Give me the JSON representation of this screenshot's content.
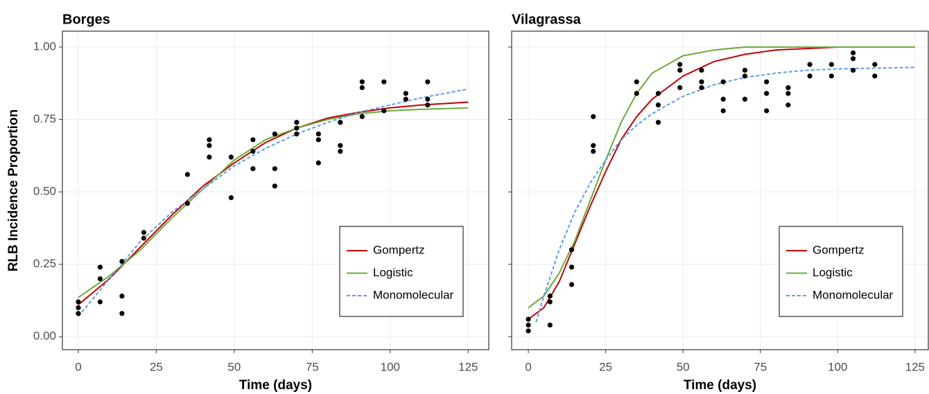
{
  "chart_data": [
    {
      "type": "line",
      "title": "Borges",
      "x_label": "Time (days)",
      "y_label": "RLB Incidence Proportion",
      "xlim": [
        -5.1,
        131.6
      ],
      "ylim": [
        -0.045,
        1.055
      ],
      "xticks": [
        0,
        25,
        50,
        75,
        100,
        125
      ],
      "yticks": [
        {
          "value": 0,
          "label": "0.00"
        },
        {
          "value": 0.25,
          "label": "0.25"
        },
        {
          "value": 0.5,
          "label": "0.50"
        },
        {
          "value": 0.75,
          "label": "0.75"
        },
        {
          "value": 1,
          "label": "1.00"
        }
      ],
      "grid": true,
      "legend": "bottom-right",
      "points": {
        "color": "#000000",
        "x": [
          0,
          0,
          0,
          7,
          7,
          7,
          14,
          14,
          14,
          21,
          21,
          35,
          35,
          42,
          42,
          42,
          49,
          49,
          56,
          56,
          56,
          63,
          63,
          63,
          70,
          70,
          70,
          77,
          77,
          77,
          84,
          84,
          84,
          91,
          91,
          91,
          98,
          98,
          105,
          105,
          112,
          112,
          112
        ],
        "values": [
          0.12,
          0.1,
          0.08,
          0.24,
          0.2,
          0.12,
          0.26,
          0.14,
          0.08,
          0.36,
          0.34,
          0.56,
          0.46,
          0.68,
          0.66,
          0.62,
          0.62,
          0.48,
          0.68,
          0.64,
          0.58,
          0.7,
          0.58,
          0.52,
          0.74,
          0.72,
          0.7,
          0.7,
          0.68,
          0.6,
          0.74,
          0.66,
          0.64,
          0.88,
          0.86,
          0.76,
          0.88,
          0.78,
          0.84,
          0.82,
          0.88,
          0.82,
          0.8
        ]
      },
      "series": [
        {
          "name": "Gompertz",
          "color": "#c00000",
          "dashed": false,
          "x": [
            0,
            10,
            20,
            30,
            40,
            50,
            60,
            70,
            80,
            90,
            100,
            110,
            125
          ],
          "values": [
            0.11,
            0.2,
            0.31,
            0.42,
            0.52,
            0.6,
            0.67,
            0.72,
            0.755,
            0.775,
            0.79,
            0.8,
            0.81
          ]
        },
        {
          "name": "Logistic",
          "color": "#6aaa3a",
          "dashed": false,
          "x": [
            0,
            10,
            20,
            30,
            40,
            50,
            60,
            70,
            80,
            90,
            100,
            110,
            125
          ],
          "values": [
            0.135,
            0.21,
            0.3,
            0.41,
            0.51,
            0.61,
            0.68,
            0.72,
            0.75,
            0.77,
            0.78,
            0.785,
            0.79
          ]
        },
        {
          "name": "Monomolecular",
          "color": "#5b9bec",
          "dashed": true,
          "x": [
            0,
            10,
            20,
            30,
            40,
            50,
            60,
            70,
            80,
            90,
            100,
            110,
            125
          ],
          "values": [
            0.07,
            0.2,
            0.33,
            0.43,
            0.51,
            0.59,
            0.65,
            0.7,
            0.74,
            0.775,
            0.8,
            0.825,
            0.855
          ]
        }
      ]
    },
    {
      "type": "line",
      "title": "Vilagrassa",
      "x_label": "Time (days)",
      "xlim": [
        -5.4,
        129.3
      ],
      "ylim": [
        -0.045,
        1.055
      ],
      "xticks": [
        0,
        25,
        50,
        75,
        100,
        125
      ],
      "yticks": [
        0,
        0.25,
        0.5,
        0.75,
        1
      ],
      "grid": true,
      "legend": "bottom-right",
      "points": {
        "color": "#000000",
        "x": [
          0,
          0,
          0,
          7,
          7,
          7,
          14,
          14,
          14,
          21,
          21,
          21,
          35,
          35,
          42,
          42,
          42,
          49,
          49,
          49,
          56,
          56,
          56,
          63,
          63,
          63,
          70,
          70,
          70,
          77,
          77,
          77,
          84,
          84,
          84,
          91,
          91,
          98,
          98,
          105,
          105,
          105,
          112,
          112
        ],
        "values": [
          0.06,
          0.04,
          0.02,
          0.14,
          0.12,
          0.04,
          0.3,
          0.24,
          0.18,
          0.76,
          0.66,
          0.64,
          0.88,
          0.84,
          0.84,
          0.8,
          0.74,
          0.94,
          0.92,
          0.86,
          0.92,
          0.88,
          0.86,
          0.88,
          0.82,
          0.78,
          0.92,
          0.9,
          0.82,
          0.88,
          0.84,
          0.78,
          0.86,
          0.84,
          0.8,
          0.94,
          0.9,
          0.94,
          0.9,
          0.98,
          0.96,
          0.92,
          0.94,
          0.9
        ]
      },
      "series": [
        {
          "name": "Gompertz",
          "color": "#c00000",
          "dashed": false,
          "x": [
            0,
            5,
            10,
            15,
            20,
            25,
            30,
            35,
            40,
            50,
            60,
            70,
            80,
            90,
            100,
            125
          ],
          "values": [
            0.06,
            0.1,
            0.19,
            0.32,
            0.45,
            0.57,
            0.68,
            0.76,
            0.82,
            0.9,
            0.95,
            0.975,
            0.99,
            0.995,
            1.0,
            1.0
          ]
        },
        {
          "name": "Logistic",
          "color": "#6aaa3a",
          "dashed": false,
          "x": [
            0,
            5,
            10,
            15,
            20,
            25,
            30,
            35,
            40,
            50,
            60,
            70,
            80,
            125
          ],
          "values": [
            0.1,
            0.14,
            0.22,
            0.33,
            0.47,
            0.61,
            0.74,
            0.84,
            0.91,
            0.97,
            0.99,
            1.0,
            1.0,
            1.0
          ]
        },
        {
          "name": "Monomolecular",
          "color": "#5b9bec",
          "dashed": true,
          "x": [
            2.5,
            5,
            10,
            15,
            20,
            25,
            30,
            35,
            40,
            50,
            60,
            70,
            80,
            90,
            100,
            125
          ],
          "values": [
            0.05,
            0.14,
            0.3,
            0.43,
            0.53,
            0.61,
            0.68,
            0.73,
            0.77,
            0.83,
            0.87,
            0.895,
            0.91,
            0.92,
            0.925,
            0.93
          ]
        }
      ]
    }
  ]
}
